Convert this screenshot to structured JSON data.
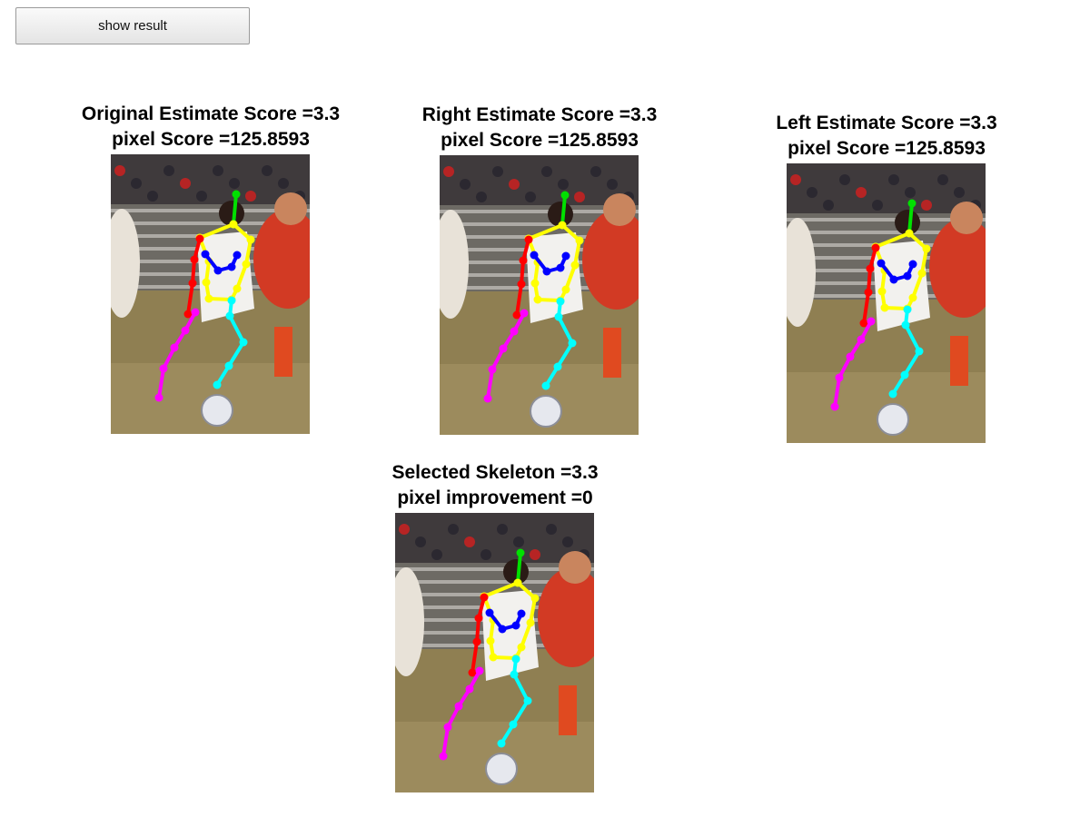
{
  "toolbar": {
    "show_result_label": "show result"
  },
  "panels": [
    {
      "title_line1": "Original Estimate Score =3.3",
      "title_line2": "pixel Score =125.8593"
    },
    {
      "title_line1": "Right Estimate Score =3.3",
      "title_line2": "pixel Score =125.8593"
    },
    {
      "title_line1": "Left Estimate Score =3.3",
      "title_line2": "pixel Score =125.8593"
    },
    {
      "title_line1": "Selected Skeleton =3.3",
      "title_line2": "pixel improvement =0"
    }
  ],
  "limb_colors": {
    "head": "#00e000",
    "torso": "#ffff00",
    "upper_body": "#0000ff",
    "right_arm": "#ff0000",
    "left_leg": "#ff00ff",
    "right_leg": "#00ffff"
  }
}
